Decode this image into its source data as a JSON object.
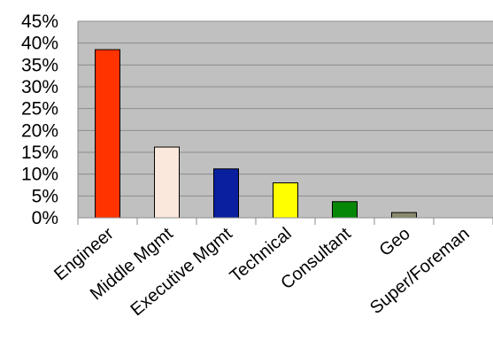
{
  "chart_data": {
    "type": "bar",
    "categories": [
      "Engineer",
      "Middle Mgmt",
      "Executive Mgmt",
      "Technical",
      "Consultant",
      "Geo",
      "Super/Foreman"
    ],
    "values": [
      38.5,
      16.2,
      11.2,
      8.0,
      3.7,
      1.2,
      0.0
    ],
    "colors": [
      "#ff3300",
      "#fbe8dc",
      "#0a1fa0",
      "#ffff00",
      "#078707",
      "#8a8a6e",
      "#999999"
    ],
    "y_tick_labels": [
      "0%",
      "5%",
      "10%",
      "15%",
      "20%",
      "25%",
      "30%",
      "35%",
      "40%",
      "45%"
    ],
    "ylim": [
      0,
      45
    ],
    "y_step": 5,
    "y_unit": "%",
    "grid": true,
    "plot_background": "#c0c0c0",
    "grid_color": "#8c8c8c",
    "title": "",
    "xlabel": "",
    "ylabel": ""
  }
}
